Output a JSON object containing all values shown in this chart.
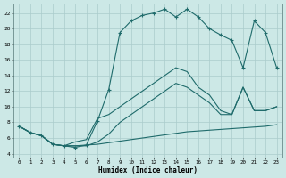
{
  "xlabel": "Humidex (Indice chaleur)",
  "background_color": "#cce8e6",
  "grid_color": "#aacccc",
  "line_color": "#1f6b6b",
  "xlim": [
    -0.5,
    23.5
  ],
  "ylim": [
    3.5,
    23.2
  ],
  "yticks": [
    4,
    6,
    8,
    10,
    12,
    14,
    16,
    18,
    20,
    22
  ],
  "xticks": [
    0,
    1,
    2,
    3,
    4,
    5,
    6,
    7,
    8,
    9,
    10,
    11,
    12,
    13,
    14,
    15,
    16,
    17,
    18,
    19,
    20,
    21,
    22,
    23
  ],
  "curve_main_x": [
    0,
    1,
    2,
    3,
    4,
    5,
    6,
    7,
    8,
    9,
    10,
    11,
    12,
    13,
    14,
    15,
    16,
    17,
    18,
    19,
    20,
    21,
    22,
    23
  ],
  "curve_main_y": [
    7.5,
    6.7,
    6.3,
    5.2,
    5.0,
    4.8,
    5.1,
    8.2,
    12.2,
    19.5,
    21.0,
    21.7,
    22.0,
    22.5,
    21.5,
    22.5,
    21.5,
    20.0,
    19.2,
    18.5,
    15.0,
    21.0,
    19.5,
    15.0
  ],
  "curve_flat_x": [
    0,
    1,
    2,
    3,
    4,
    5,
    6,
    7,
    8,
    9,
    10,
    11,
    12,
    13,
    14,
    15,
    16,
    17,
    18,
    19,
    20,
    21,
    22,
    23
  ],
  "curve_flat_y": [
    7.5,
    6.7,
    6.3,
    5.2,
    5.0,
    5.0,
    5.1,
    5.2,
    5.4,
    5.6,
    5.8,
    6.0,
    6.2,
    6.4,
    6.6,
    6.8,
    6.9,
    7.0,
    7.1,
    7.2,
    7.3,
    7.4,
    7.5,
    7.7
  ],
  "curve_mid_x": [
    0,
    1,
    2,
    3,
    4,
    5,
    6,
    7,
    8,
    9,
    10,
    11,
    12,
    13,
    14,
    15,
    16,
    17,
    18,
    19,
    20,
    21,
    22,
    23
  ],
  "curve_mid_y": [
    7.5,
    6.7,
    6.3,
    5.2,
    5.0,
    5.5,
    5.8,
    8.5,
    9.0,
    10.0,
    11.0,
    12.0,
    13.0,
    14.0,
    15.0,
    14.5,
    12.5,
    11.5,
    9.5,
    9.0,
    12.5,
    9.5,
    9.5,
    10.0
  ],
  "curve_diag_x": [
    0,
    1,
    2,
    3,
    4,
    5,
    6,
    7,
    8,
    9,
    10,
    11,
    12,
    13,
    14,
    15,
    16,
    17,
    18,
    19,
    20,
    21,
    22,
    23
  ],
  "curve_diag_y": [
    7.5,
    6.7,
    6.3,
    5.2,
    5.0,
    5.0,
    5.0,
    5.5,
    6.5,
    8.0,
    9.0,
    10.0,
    11.0,
    12.0,
    13.0,
    12.5,
    11.5,
    10.5,
    9.0,
    9.0,
    12.5,
    9.5,
    9.5,
    10.0
  ]
}
